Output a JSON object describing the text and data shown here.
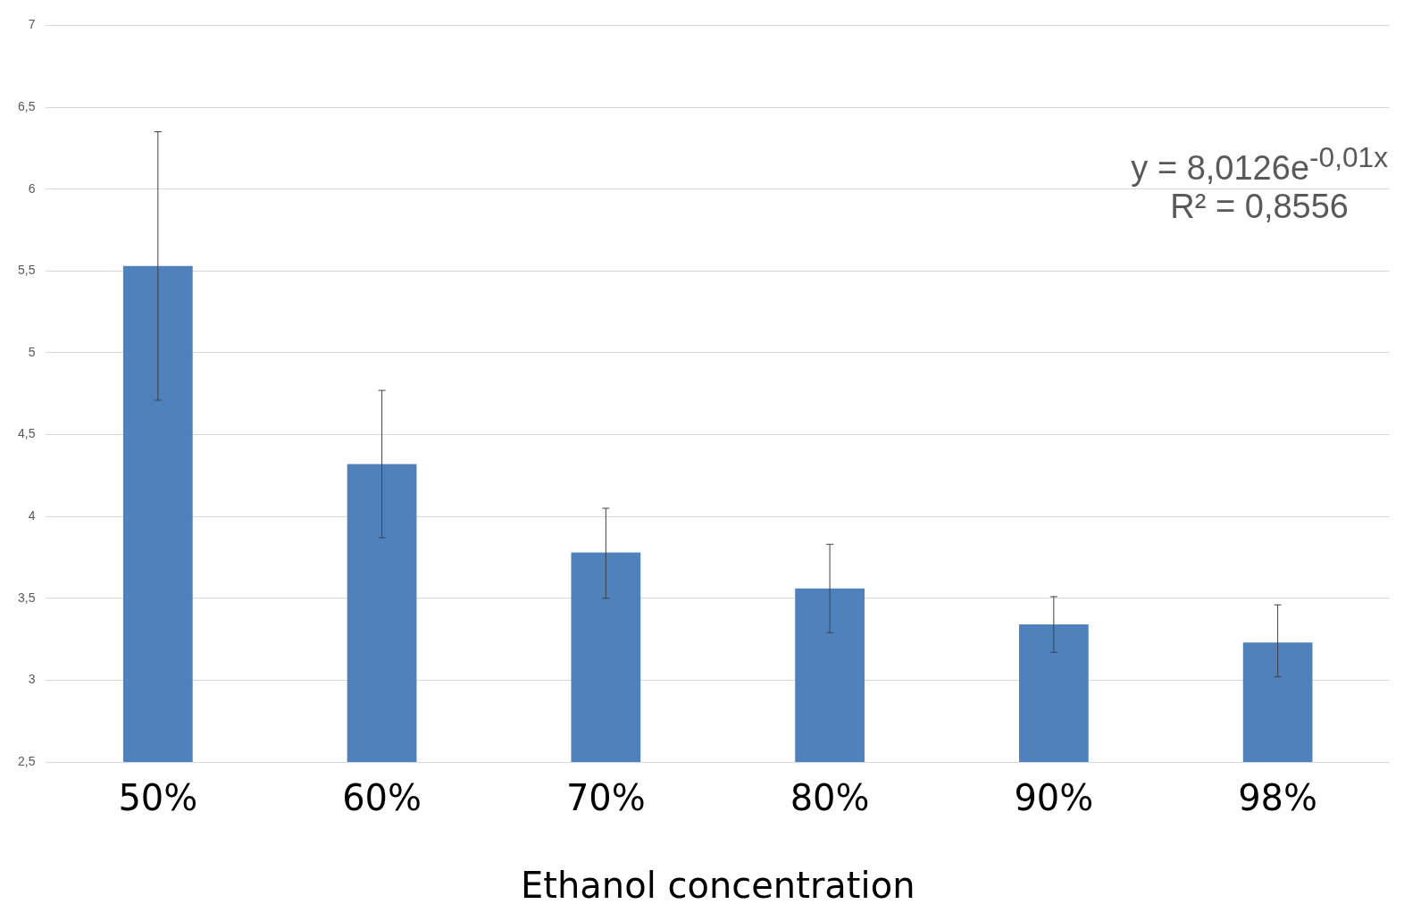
{
  "chart_data": {
    "type": "bar",
    "xlabel": "Ethanol concentration",
    "categories": [
      "50%",
      "60%",
      "70%",
      "80%",
      "90%",
      "98%"
    ],
    "values": [
      5.53,
      4.32,
      3.78,
      3.56,
      3.34,
      3.23
    ],
    "errors": [
      [
        4.71,
        6.35
      ],
      [
        3.87,
        4.77
      ],
      [
        3.5,
        4.05
      ],
      [
        3.29,
        3.83
      ],
      [
        3.17,
        3.51
      ],
      [
        3.02,
        3.46
      ]
    ],
    "color": "#4f81bd",
    "ylim": [
      2.5,
      7
    ],
    "yticks": [
      {
        "value": 2.5,
        "label": "2,5"
      },
      3,
      {
        "value": 3.5,
        "label": "3,5"
      },
      4,
      {
        "value": 4.5,
        "label": "4,5"
      },
      5,
      {
        "value": 5.5,
        "label": "5,5"
      },
      6,
      {
        "value": 6.5,
        "label": "6,5"
      },
      7
    ],
    "grid": "y",
    "legend": false,
    "annotations": [
      "y = 8,0126e$^{-0,01x}$",
      "R² = 0,8556"
    ]
  }
}
